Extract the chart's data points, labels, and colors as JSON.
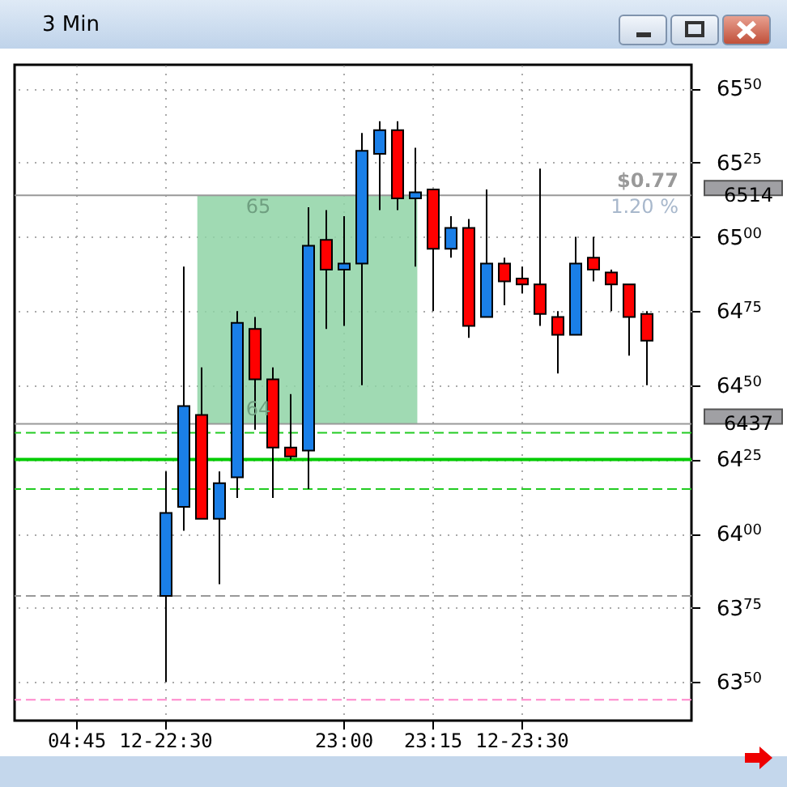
{
  "chart_data": {
    "type": "candlestick",
    "title": "3 Min",
    "categories": [
      null,
      null,
      null,
      "04:45",
      null,
      null,
      null,
      null,
      "12-22:30",
      null,
      null,
      null,
      null,
      null,
      null,
      null,
      null,
      null,
      "23:00",
      null,
      null,
      null,
      null,
      "23:15",
      null,
      null,
      null,
      null,
      "12-23:30",
      null,
      null,
      null,
      null,
      null,
      null,
      null,
      null,
      null
    ],
    "ohlc": [
      null,
      null,
      null,
      null,
      null,
      null,
      null,
      null,
      [
        6379,
        6421,
        6350,
        6407
      ],
      [
        6409,
        6490,
        6401,
        6443
      ],
      [
        6440,
        6456,
        6405,
        6405
      ],
      [
        6405,
        6421,
        6383,
        6417
      ],
      [
        6419,
        6475,
        6412,
        6471
      ],
      [
        6469,
        6473,
        6435,
        6452
      ],
      [
        6452,
        6456,
        6412,
        6429
      ],
      [
        6429,
        6447,
        6425,
        6426
      ],
      [
        6428,
        6510,
        6415,
        6497
      ],
      [
        6499,
        6509,
        6469,
        6489
      ],
      [
        6489,
        6507,
        6470,
        6491
      ],
      [
        6491,
        6535,
        6450,
        6529
      ],
      [
        6528,
        6539,
        6509,
        6536
      ],
      [
        6536,
        6539,
        6509,
        6513
      ],
      [
        6513,
        6530,
        6490,
        6515
      ],
      [
        6516,
        6516,
        6475,
        6496
      ],
      [
        6496,
        6507,
        6493,
        6503
      ],
      [
        6503,
        6506,
        6466,
        6470
      ],
      [
        6473,
        6516,
        6473,
        6491
      ],
      [
        6491,
        6493,
        6477,
        6485
      ],
      [
        6486,
        6490,
        6481,
        6484
      ],
      [
        6484,
        6523,
        6470,
        6474
      ],
      [
        6473,
        6475,
        6454,
        6467
      ],
      [
        6467,
        6500,
        6467,
        6491
      ],
      [
        6493,
        6500,
        6485,
        6489
      ],
      [
        6488,
        6489,
        6475,
        6484
      ],
      [
        6484,
        6484,
        6460,
        6473
      ],
      [
        6474,
        6475,
        6450,
        6465
      ],
      null,
      null
    ],
    "colors": [
      null,
      null,
      null,
      null,
      null,
      null,
      null,
      null,
      "#1a7fe8",
      "#1a7fe8",
      "#ff0000",
      "#1a7fe8",
      "#1a7fe8",
      "#ff0000",
      "#ff0000",
      "#ff0000",
      "#1a7fe8",
      "#ff0000",
      "#1a7fe8",
      "#1a7fe8",
      "#1a7fe8",
      "#ff0000",
      "#1a7fe8",
      "#ff0000",
      "#1a7fe8",
      "#ff0000",
      "#1a7fe8",
      "#ff0000",
      "#ff0000",
      "#ff0000",
      "#ff0000",
      "#1a7fe8",
      "#ff0000",
      "#ff0000",
      "#ff0000",
      "#ff0000",
      null,
      null
    ],
    "ylim": [
      6337,
      6558
    ],
    "yticks": [
      6350,
      6375,
      6400,
      6425,
      6450,
      6475,
      6500,
      6525,
      6550
    ],
    "grid": true,
    "bands": [
      {
        "axis": "y",
        "from": 6437,
        "to": 6514,
        "color": "#8fd3a6"
      }
    ],
    "ref_lines": [
      {
        "axis": "y",
        "value": 6514,
        "label": "6514",
        "color": "#999999",
        "line_style": "solid"
      },
      {
        "axis": "y",
        "value": 6437,
        "label": "6437",
        "color": "#999999",
        "line_style": "solid"
      },
      {
        "axis": "y",
        "value": 6434,
        "color": "#22cc22",
        "line_style": "dashed"
      },
      {
        "axis": "y",
        "value": 6425,
        "color": "#00cc00",
        "line_style": "solid"
      },
      {
        "axis": "y",
        "value": 6415,
        "color": "#22cc22",
        "line_style": "dashed"
      },
      {
        "axis": "y",
        "value": 6379,
        "color": "#999999",
        "line_style": "dashed"
      },
      {
        "axis": "y",
        "value": 6344,
        "color": "#ff88cc",
        "line_style": "dashed"
      }
    ],
    "annotations": [
      {
        "text": "65",
        "y": 6514
      },
      {
        "text": "64",
        "y": 6437
      },
      {
        "text": "$0.77",
        "y": 6514
      },
      {
        "text": "1.20 %",
        "y": 6514
      }
    ]
  }
}
